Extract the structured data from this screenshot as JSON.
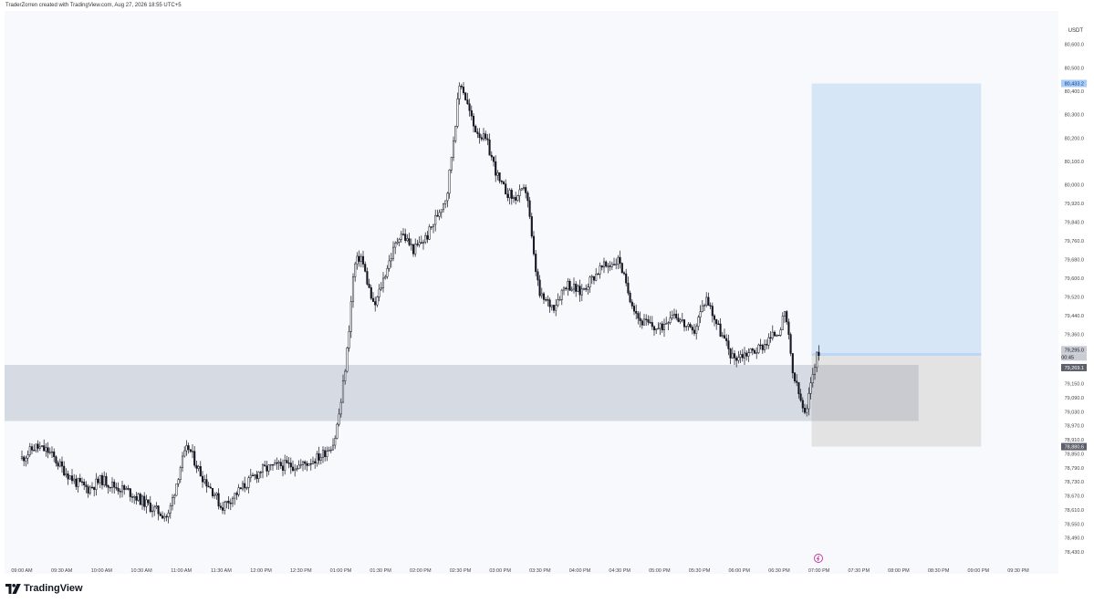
{
  "header": {
    "text": "TraderZorren created with TradingView.com, Aug 27, 2026 18:55 UTC+5"
  },
  "footer": {
    "brand": "TradingView",
    "logo_icon": "tradingview-logo-icon"
  },
  "colors": {
    "candle": "#131722",
    "background": "#f8f9fd",
    "demand_zone": "#d6dbe3",
    "target_zone": "#d7e6f7",
    "stop_zone": "#e3e3e3",
    "entry_line": "#bcd6f5",
    "entry_badge": "#2962ff",
    "label_dark": "#5d606b",
    "label_light": "#c9ccd3"
  },
  "chart_data": {
    "type": "candlestick",
    "symbol_currency": "USDT",
    "ylim": [
      78400,
      80700
    ],
    "y_ticks": [
      "80,600.0",
      "80,500.0",
      "80,400.0",
      "80,300.0",
      "80,200.0",
      "80,100.0",
      "80,000.0",
      "79,920.0",
      "79,840.0",
      "79,760.0",
      "79,680.0",
      "79,600.0",
      "79,520.0",
      "79,440.0",
      "79,360.0",
      "79,150.0",
      "79,090.0",
      "79,030.0",
      "78,970.0",
      "78,910.0",
      "78,850.0",
      "78,790.0",
      "78,730.0",
      "78,670.0",
      "78,610.0",
      "78,550.0",
      "78,490.0",
      "78,430.0"
    ],
    "x_ticks": [
      "09:00 AM",
      "09:30 AM",
      "10:00 AM",
      "10:30 AM",
      "11:00 AM",
      "11:30 AM",
      "12:00 PM",
      "12:30 PM",
      "01:00 PM",
      "01:30 PM",
      "02:00 PM",
      "02:30 PM",
      "03:00 PM",
      "03:30 PM",
      "04:00 PM",
      "04:30 PM",
      "05:00 PM",
      "05:30 PM",
      "06:00 PM",
      "06:30 PM",
      "07:00 PM",
      "07:30 PM",
      "08:00 PM",
      "08:30 PM",
      "09:00 PM",
      "09:30 PM"
    ],
    "price_labels": {
      "target": "80,433.2",
      "current": "79,295.0",
      "countdown": "00:45",
      "entry": "79,269.1",
      "stop": "78,880.6"
    },
    "series_path": [
      [
        "09:00 AM",
        78830
      ],
      [
        "09:10 AM",
        78880
      ],
      [
        "09:20 AM",
        78860
      ],
      [
        "09:30 AM",
        78790
      ],
      [
        "09:40 AM",
        78730
      ],
      [
        "09:50 AM",
        78700
      ],
      [
        "10:00 AM",
        78740
      ],
      [
        "10:10 AM",
        78710
      ],
      [
        "10:20 AM",
        78690
      ],
      [
        "10:30 AM",
        78650
      ],
      [
        "10:40 AM",
        78610
      ],
      [
        "10:50 AM",
        78580
      ],
      [
        "11:00 AM",
        78810
      ],
      [
        "11:05 AM",
        78880
      ],
      [
        "11:15 AM",
        78760
      ],
      [
        "11:25 AM",
        78680
      ],
      [
        "11:30 AM",
        78620
      ],
      [
        "11:45 AM",
        78700
      ],
      [
        "12:00 PM",
        78780
      ],
      [
        "12:15 PM",
        78800
      ],
      [
        "12:30 PM",
        78800
      ],
      [
        "12:45 PM",
        78840
      ],
      [
        "12:55 PM",
        78900
      ],
      [
        "01:00 PM",
        79060
      ],
      [
        "01:05 PM",
        79300
      ],
      [
        "01:10 PM",
        79650
      ],
      [
        "01:15 PM",
        79700
      ],
      [
        "01:25 PM",
        79470
      ],
      [
        "01:35 PM",
        79650
      ],
      [
        "01:45 PM",
        79800
      ],
      [
        "01:55 PM",
        79720
      ],
      [
        "02:05 PM",
        79780
      ],
      [
        "02:20 PM",
        79960
      ],
      [
        "02:30 PM",
        80450
      ],
      [
        "02:40 PM",
        80250
      ],
      [
        "02:50 PM",
        80180
      ],
      [
        "03:00 PM",
        80000
      ],
      [
        "03:10 PM",
        79940
      ],
      [
        "03:20 PM",
        79980
      ],
      [
        "03:25 PM",
        79700
      ],
      [
        "03:30 PM",
        79520
      ],
      [
        "03:40 PM",
        79480
      ],
      [
        "03:50 PM",
        79580
      ],
      [
        "04:00 PM",
        79540
      ],
      [
        "04:15 PM",
        79640
      ],
      [
        "04:30 PM",
        79680
      ],
      [
        "04:35 PM",
        79560
      ],
      [
        "04:45 PM",
        79420
      ],
      [
        "05:00 PM",
        79380
      ],
      [
        "05:10 PM",
        79460
      ],
      [
        "05:25 PM",
        79360
      ],
      [
        "05:35 PM",
        79520
      ],
      [
        "05:45 PM",
        79380
      ],
      [
        "05:55 PM",
        79260
      ],
      [
        "06:05 PM",
        79280
      ],
      [
        "06:15 PM",
        79300
      ],
      [
        "06:30 PM",
        79380
      ],
      [
        "06:35 PM",
        79450
      ],
      [
        "06:40 PM",
        79200
      ],
      [
        "06:45 PM",
        79100
      ],
      [
        "06:50 PM",
        79000
      ],
      [
        "06:55 PM",
        79200
      ],
      [
        "07:00 PM",
        79295
      ]
    ],
    "zones": [
      {
        "name": "demand-zone",
        "from_time": "09:00 AM",
        "to_time": "08:15 PM",
        "price_low": 78990,
        "price_high": 79230
      },
      {
        "name": "target-zone",
        "from_time": "07:00 PM",
        "to_time": "09:00 PM",
        "price_low": 79269.1,
        "price_high": 80433.2
      },
      {
        "name": "stop-zone",
        "from_time": "07:00 PM",
        "to_time": "09:00 PM",
        "price_low": 78880.6,
        "price_high": 79269.1
      }
    ]
  }
}
